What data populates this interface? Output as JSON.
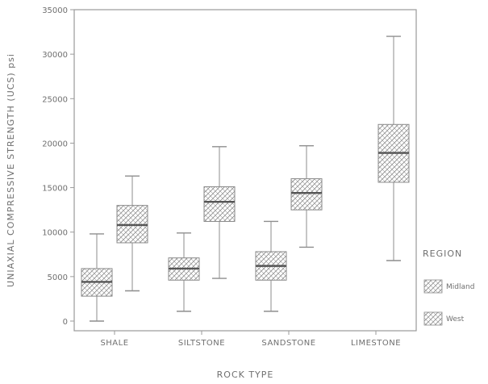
{
  "chart_data": {
    "type": "boxplot",
    "xlabel": "ROCK TYPE",
    "ylabel": "UNIAXIAL COMPRESSIVE STRENGTH (UCS) psi",
    "ylim": [
      0,
      35000
    ],
    "yticks": [
      0,
      5000,
      10000,
      15000,
      20000,
      25000,
      30000,
      35000
    ],
    "ytick_labels": [
      "0",
      "5000",
      "10000",
      "15000",
      "20000",
      "25000",
      "30000",
      "35000"
    ],
    "categories": [
      "SHALE",
      "SILTSTONE",
      "SANDSTONE",
      "LIMESTONE"
    ],
    "legend": {
      "title": "REGION",
      "position": "right"
    },
    "colors": {
      "series_a": "#b0b0b0",
      "series_b": "#a4a4a4",
      "frame": "#9a9a9a",
      "whisker": "#8e8e8e",
      "median": "#555555"
    },
    "series": [
      {
        "name": "Midland",
        "boxes": [
          {
            "category": "SHALE",
            "min": 0,
            "q1": 2800,
            "median": 4400,
            "q3": 5900,
            "max": 9800
          },
          {
            "category": "SILTSTONE",
            "min": 1100,
            "q1": 4600,
            "median": 5900,
            "q3": 7100,
            "max": 9900
          },
          {
            "category": "SANDSTONE",
            "min": 1100,
            "q1": 4600,
            "median": 6200,
            "q3": 7800,
            "max": 11200
          }
        ]
      },
      {
        "name": "West",
        "boxes": [
          {
            "category": "SHALE",
            "min": 3400,
            "q1": 8800,
            "median": 10800,
            "q3": 13000,
            "max": 16300
          },
          {
            "category": "SILTSTONE",
            "min": 4800,
            "q1": 11200,
            "median": 13400,
            "q3": 15100,
            "max": 19600
          },
          {
            "category": "SANDSTONE",
            "min": 8300,
            "q1": 12500,
            "median": 14400,
            "q3": 16000,
            "max": 19700
          },
          {
            "category": "LIMESTONE",
            "min": 6800,
            "q1": 15600,
            "median": 18900,
            "q3": 22100,
            "max": 32000
          }
        ]
      }
    ]
  }
}
